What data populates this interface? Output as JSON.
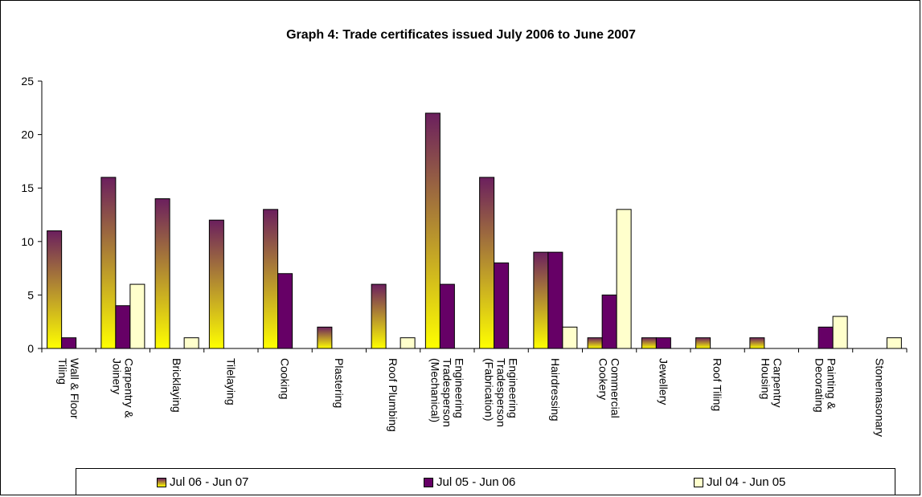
{
  "chart_data": {
    "type": "bar",
    "title": "Graph 4: Trade certificates issued July 2006 to June 2007",
    "xlabel": "",
    "ylabel": "",
    "ylim": [
      0,
      25
    ],
    "yticks": [
      0,
      5,
      10,
      15,
      20,
      25
    ],
    "grid": false,
    "legend_position": "bottom",
    "categories": [
      [
        "Wall & Floor",
        "Tiling"
      ],
      [
        "Carpentry &",
        "Joinery"
      ],
      [
        "Bricklaying"
      ],
      [
        "Tilelaying"
      ],
      [
        "Cooking"
      ],
      [
        "Plastering"
      ],
      [
        "Roof Plumbing"
      ],
      [
        "Engineering",
        "Tradesperson",
        "(Mechanical)"
      ],
      [
        "Engineering",
        "Tradesperson",
        "(Fabrication)"
      ],
      [
        "Hairdressing"
      ],
      [
        "Commercial",
        "Cookery"
      ],
      [
        "Jewellery"
      ],
      [
        "Roof Tiling"
      ],
      [
        "Carpentry",
        "Housing"
      ],
      [
        "Painting &",
        "Decorating"
      ],
      [
        "Stonemasonary"
      ]
    ],
    "series": [
      {
        "name": "Jul 06 - Jun 07",
        "style": "gradient",
        "color_top": "#6b1f5e",
        "color_bottom": "#ffff00",
        "values": [
          11,
          16,
          14,
          12,
          13,
          2,
          6,
          22,
          16,
          9,
          1,
          1,
          1,
          1,
          0,
          0
        ]
      },
      {
        "name": "Jul 05 - Jun 06",
        "style": "solid",
        "color": "#660066",
        "values": [
          1,
          4,
          0,
          0,
          7,
          0,
          0,
          6,
          8,
          9,
          5,
          1,
          0,
          0,
          2,
          0
        ]
      },
      {
        "name": "Jul 04 - Jun 05",
        "style": "solid",
        "color": "#ffffcc",
        "values": [
          0,
          6,
          1,
          0,
          0,
          0,
          1,
          0,
          0,
          2,
          13,
          0,
          0,
          0,
          3,
          1
        ]
      }
    ]
  }
}
